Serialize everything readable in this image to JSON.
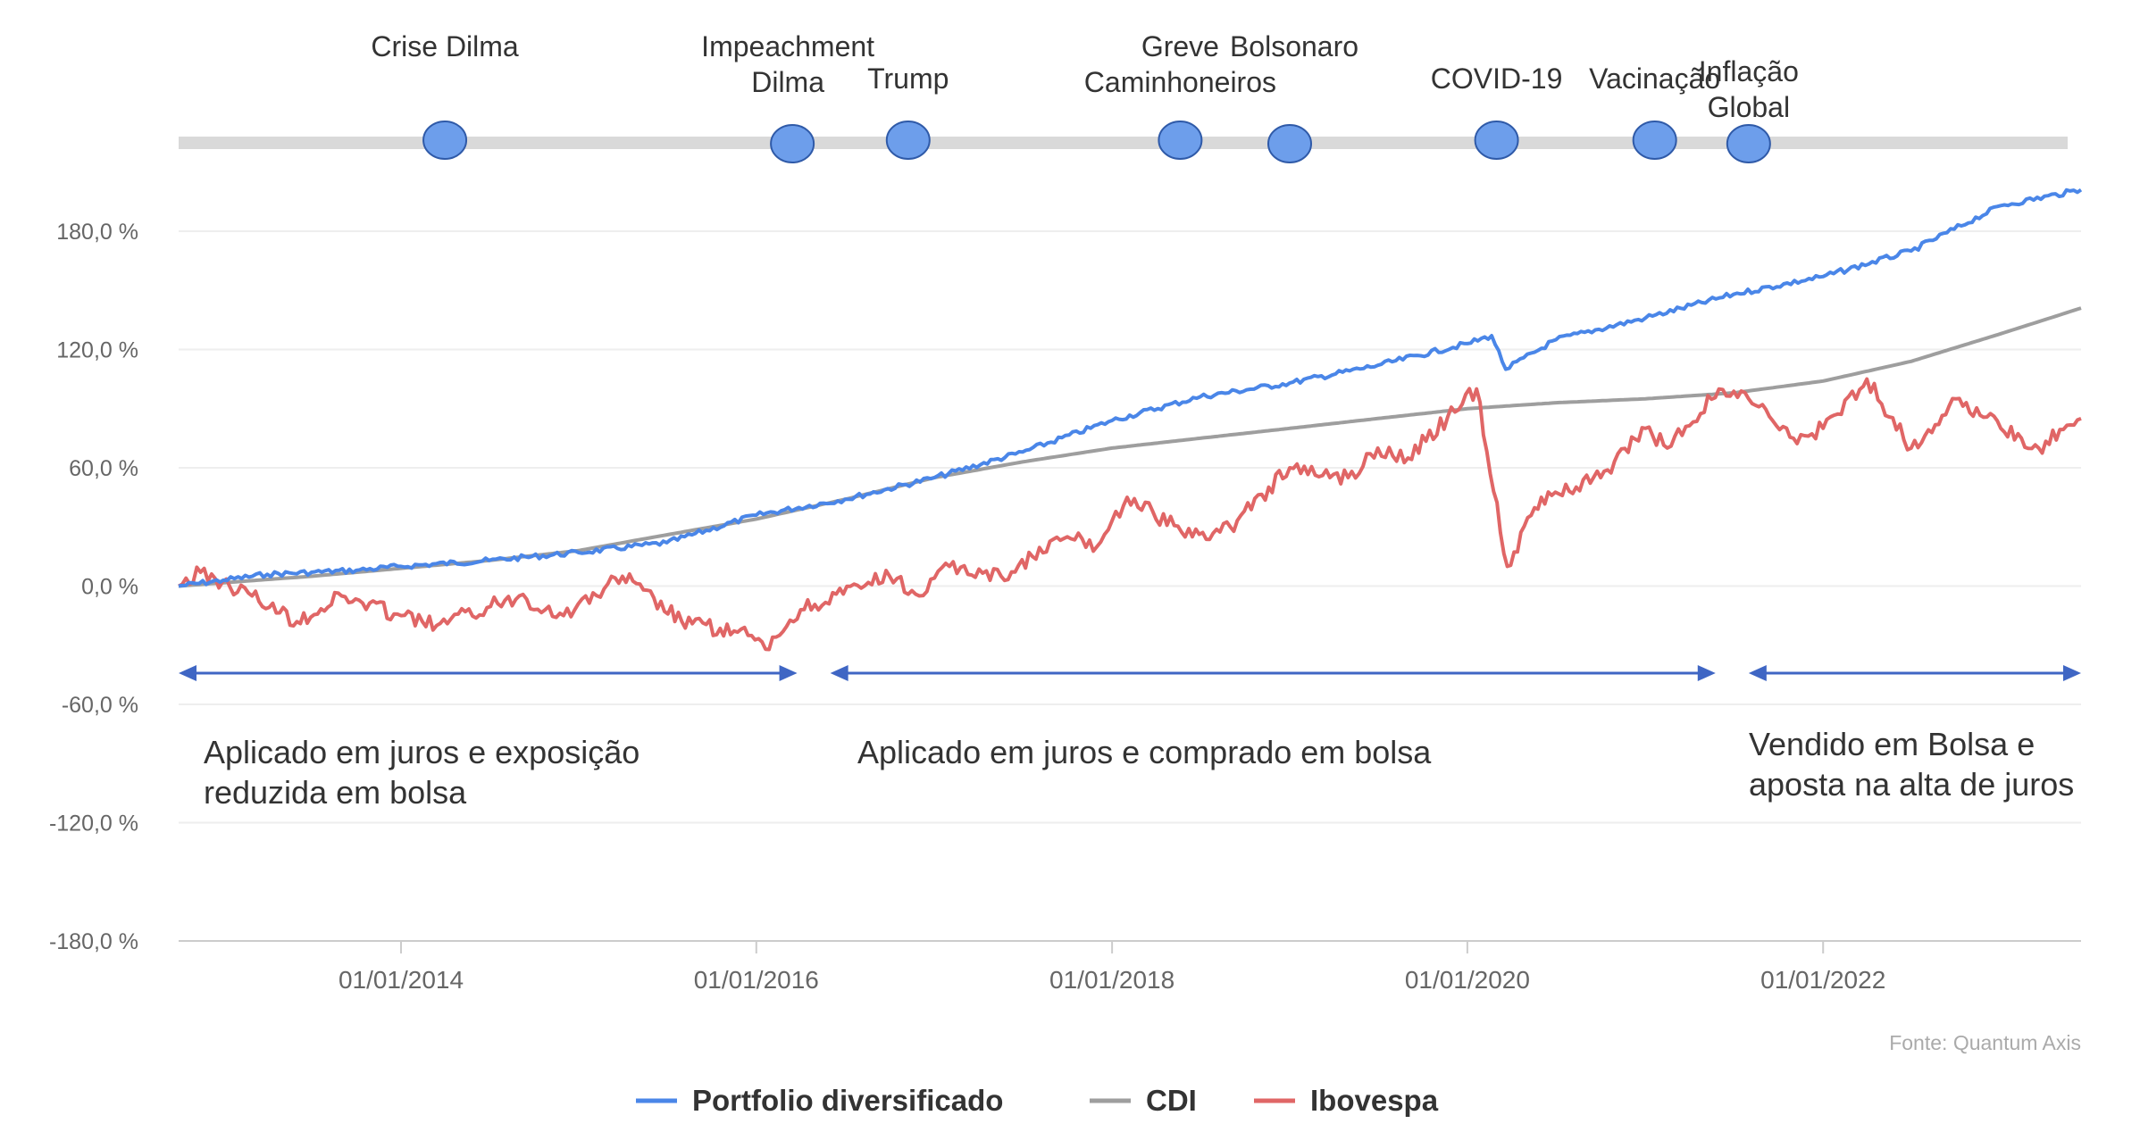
{
  "chart_data": {
    "type": "line",
    "ylim": [
      -180,
      210
    ],
    "x_range": [
      "2012-10-01",
      "2023-06-15"
    ],
    "y_ticks": [
      -180,
      -120,
      -60,
      0,
      60,
      120,
      180
    ],
    "y_tick_labels": [
      "-180,0 %",
      "-120,0 %",
      "-60,0 %",
      "0,0 %",
      "60,0 %",
      "120,0 %",
      "180,0 %"
    ],
    "x_ticks": [
      "2014-01-01",
      "2016-01-01",
      "2018-01-01",
      "2020-01-01",
      "2022-01-01"
    ],
    "x_tick_labels": [
      "01/01/2014",
      "01/01/2016",
      "01/01/2018",
      "01/01/2020",
      "01/01/2022"
    ],
    "grid": true,
    "legend_position": "bottom-center",
    "series": [
      {
        "name": "Portfolio diversificado",
        "color": "#4a86e8",
        "points": [
          [
            "2012-10-01",
            0
          ],
          [
            "2013-01-01",
            3
          ],
          [
            "2013-04-01",
            6
          ],
          [
            "2013-07-01",
            7
          ],
          [
            "2013-10-01",
            8
          ],
          [
            "2014-01-01",
            10
          ],
          [
            "2014-07-01",
            13
          ],
          [
            "2015-01-01",
            17
          ],
          [
            "2015-07-01",
            22
          ],
          [
            "2016-01-01",
            36
          ],
          [
            "2016-07-01",
            44
          ],
          [
            "2017-01-01",
            55
          ],
          [
            "2017-07-01",
            68
          ],
          [
            "2018-01-01",
            84
          ],
          [
            "2018-07-01",
            96
          ],
          [
            "2019-01-01",
            103
          ],
          [
            "2019-07-01",
            112
          ],
          [
            "2020-01-01",
            123
          ],
          [
            "2020-02-20",
            127
          ],
          [
            "2020-03-20",
            110
          ],
          [
            "2020-07-01",
            125
          ],
          [
            "2021-01-01",
            136
          ],
          [
            "2021-07-01",
            148
          ],
          [
            "2022-01-01",
            157
          ],
          [
            "2022-07-01",
            170
          ],
          [
            "2023-01-01",
            193
          ],
          [
            "2023-06-15",
            201
          ]
        ]
      },
      {
        "name": "CDI",
        "color": "#9e9e9e",
        "points": [
          [
            "2012-10-01",
            0
          ],
          [
            "2013-07-01",
            5
          ],
          [
            "2014-01-01",
            9
          ],
          [
            "2014-07-01",
            13
          ],
          [
            "2015-01-01",
            18
          ],
          [
            "2015-07-01",
            26
          ],
          [
            "2016-01-01",
            34
          ],
          [
            "2016-07-01",
            44
          ],
          [
            "2017-01-01",
            55
          ],
          [
            "2017-07-01",
            63
          ],
          [
            "2018-01-01",
            70
          ],
          [
            "2018-07-01",
            75
          ],
          [
            "2019-01-01",
            80
          ],
          [
            "2019-07-01",
            85
          ],
          [
            "2020-01-01",
            90
          ],
          [
            "2020-07-01",
            93
          ],
          [
            "2021-01-01",
            95
          ],
          [
            "2021-07-01",
            98
          ],
          [
            "2022-01-01",
            104
          ],
          [
            "2022-07-01",
            114
          ],
          [
            "2023-01-01",
            128
          ],
          [
            "2023-06-15",
            141
          ]
        ]
      },
      {
        "name": "Ibovespa",
        "color": "#e06666",
        "points": [
          [
            "2012-10-01",
            0
          ],
          [
            "2012-11-15",
            7
          ],
          [
            "2013-03-01",
            -5
          ],
          [
            "2013-06-01",
            -18
          ],
          [
            "2013-09-01",
            -5
          ],
          [
            "2014-01-01",
            -15
          ],
          [
            "2014-03-15",
            -20
          ],
          [
            "2014-09-01",
            -5
          ],
          [
            "2014-12-01",
            -15
          ],
          [
            "2015-04-01",
            5
          ],
          [
            "2015-08-01",
            -18
          ],
          [
            "2015-12-15",
            -25
          ],
          [
            "2016-01-20",
            -32
          ],
          [
            "2016-04-01",
            -12
          ],
          [
            "2016-10-01",
            5
          ],
          [
            "2016-12-01",
            -5
          ],
          [
            "2017-02-01",
            10
          ],
          [
            "2017-05-18",
            5
          ],
          [
            "2017-10-01",
            25
          ],
          [
            "2017-12-01",
            20
          ],
          [
            "2018-02-01",
            45
          ],
          [
            "2018-06-15",
            25
          ],
          [
            "2018-09-01",
            30
          ],
          [
            "2019-01-01",
            60
          ],
          [
            "2019-05-01",
            55
          ],
          [
            "2019-07-01",
            70
          ],
          [
            "2019-09-01",
            65
          ],
          [
            "2020-01-20",
            100
          ],
          [
            "2020-03-23",
            10
          ],
          [
            "2020-06-01",
            45
          ],
          [
            "2020-10-01",
            55
          ],
          [
            "2021-01-01",
            80
          ],
          [
            "2021-02-15",
            70
          ],
          [
            "2021-06-01",
            100
          ],
          [
            "2021-08-01",
            95
          ],
          [
            "2021-11-01",
            75
          ],
          [
            "2022-01-01",
            80
          ],
          [
            "2022-04-01",
            105
          ],
          [
            "2022-07-01",
            70
          ],
          [
            "2022-10-01",
            95
          ],
          [
            "2023-01-01",
            80
          ],
          [
            "2023-03-20",
            70
          ],
          [
            "2023-06-15",
            85
          ]
        ]
      }
    ]
  },
  "events": [
    {
      "label": [
        "Crise Dilma"
      ],
      "date": "2014-04-01"
    },
    {
      "label": [
        "Impeachment",
        "Dilma"
      ],
      "date": "2016-03-15"
    },
    {
      "label": [
        "Trump"
      ],
      "date": "2016-11-08"
    },
    {
      "label": [
        "Greve",
        "Caminhoneiros"
      ],
      "date": "2018-05-21"
    },
    {
      "label": [
        "Bolsonaro"
      ],
      "date": "2019-01-01"
    },
    {
      "label": [
        "COVID-19"
      ],
      "date": "2020-03-01"
    },
    {
      "label": [
        "Vacinação"
      ],
      "date": "2021-01-20"
    },
    {
      "label": [
        "Inflação",
        "Global"
      ],
      "date": "2021-08-01"
    }
  ],
  "periods": [
    {
      "label": [
        "Aplicado em juros e exposição",
        "reduzida em bolsa"
      ],
      "start": "2012-10-01",
      "end": "2016-03-25"
    },
    {
      "label": [
        "Aplicado em juros e comprado em bolsa"
      ],
      "start": "2016-06-01",
      "end": "2021-05-25"
    },
    {
      "label": [
        "Vendido em Bolsa  e",
        "aposta na alta de juros"
      ],
      "start": "2021-08-01",
      "end": "2023-06-15"
    }
  ],
  "source": "Fonte: Quantum Axis",
  "colors": {
    "arrow": "#3f66c4",
    "event_dot": "#6d9eeb",
    "event_dot_stroke": "#2f5aa8",
    "timeline": "#d9d9d9"
  }
}
